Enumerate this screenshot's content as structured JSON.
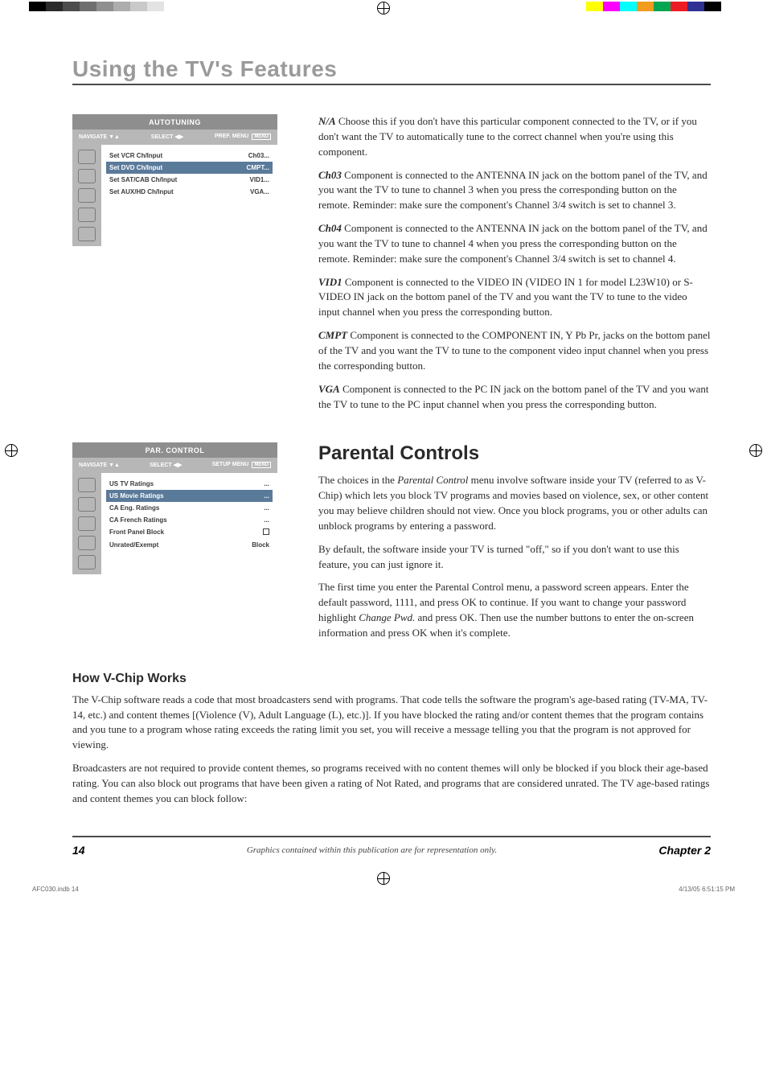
{
  "colorbars": {
    "left": [
      "#000000",
      "#2b2b2b",
      "#4d4d4d",
      "#6e6e6e",
      "#8f8f8f",
      "#adadad",
      "#c9c9c9",
      "#e3e3e3",
      "#ffffff"
    ],
    "right": [
      "#ffff00",
      "#ff00ff",
      "#00ffff",
      "#f29b1d",
      "#00a651",
      "#ed1c24",
      "#2e3192",
      "#000000",
      "#ffffff"
    ]
  },
  "page": {
    "title": "Using the TV's Features",
    "number": "14",
    "footer_note": "Graphics contained within this publication are for representation only.",
    "chapter": "Chapter 2"
  },
  "print": {
    "file": "AFC030.indb   14",
    "datetime": "4/13/05   6:51:15 PM"
  },
  "autotuning": {
    "title": "AUTOTUNING",
    "nav_left": "NAVIGATE",
    "nav_mid": "SELECT",
    "nav_right": "PREF. MENU",
    "nav_box": "MENU",
    "rows": [
      {
        "label": "Set VCR Ch/Input",
        "val": "Ch03..."
      },
      {
        "label": "Set DVD Ch/Input",
        "val": "CMPT...",
        "selected": true
      },
      {
        "label": "Set SAT/CAB Ch/Input",
        "val": "VID1..."
      },
      {
        "label": "Set AUX/HD Ch/Input",
        "val": "VGA..."
      }
    ]
  },
  "parcontrol": {
    "title": "PAR. CONTROL",
    "nav_left": "NAVIGATE",
    "nav_mid": "SELECT",
    "nav_right": "SETUP MENU",
    "nav_box": "MENU",
    "rows": [
      {
        "label": "US TV Ratings",
        "val": "..."
      },
      {
        "label": "US Movie Ratings",
        "val": "...",
        "selected": true
      },
      {
        "label": "CA Eng. Ratings",
        "val": "..."
      },
      {
        "label": "CA French Ratings",
        "val": "..."
      },
      {
        "label": "Front Panel Block",
        "val": "[checkbox]"
      },
      {
        "label": "Unrated/Exempt",
        "val": "Block"
      }
    ]
  },
  "defs": {
    "na": {
      "term": "N/A",
      "text": "  Choose this if you don't have this particular component connected to the TV, or if you don't want the TV to automatically tune to the correct channel when you're using this component."
    },
    "ch03": {
      "term": "Ch03",
      "text": "  Component is connected to the ANTENNA IN jack on the bottom panel of the TV, and you want the TV to tune to channel 3 when you press the corresponding button on the remote. Reminder: make sure the component's Channel 3/4 switch is set to channel 3."
    },
    "ch04": {
      "term": "Ch04",
      "text": "  Component is connected to the ANTENNA IN jack on the bottom panel of the TV, and you want the TV to tune to channel 4 when you press the corresponding button on the remote. Reminder: make sure the component's Channel 3/4 switch is set to channel 4."
    },
    "vid1": {
      "term": "VID1",
      "text": "   Component is connected to the VIDEO IN (VIDEO IN 1 for model L23W10) or S-VIDEO IN jack on the bottom panel of the TV and you want the TV to tune to the video input channel when you press the corresponding button."
    },
    "cmpt": {
      "term": "CMPT",
      "text": "   Component is connected to the COMPONENT IN, Y Pb Pr,  jacks on the bottom panel of the TV and you want the TV to tune to the component video input channel when you press the corresponding button."
    },
    "vga": {
      "term": "VGA",
      "text": "   Component is connected to the PC IN jack on the bottom panel of the TV and you want the TV to tune to the PC input channel when you press the corresponding button."
    }
  },
  "parental": {
    "heading": "Parental Controls",
    "p1a": "The choices in the ",
    "p1i": "Parental Control",
    "p1b": " menu involve software inside your TV (referred to as V-Chip) which lets you block TV programs and movies based on violence, sex, or other content you may believe children should not view. Once you block programs, you or other adults can unblock programs by entering a password.",
    "p2": "By default, the software inside your TV is turned \"off,\" so if you don't want to use this feature, you can just ignore it.",
    "p3a": "The first time you enter the Parental Control menu, a  password screen appears. Enter the default password, 1111, and press OK to continue. If you want to change your password highlight ",
    "p3i": "Change Pwd.",
    "p3b": " and press OK. Then use the number buttons to enter the on-screen information and press OK when it's complete."
  },
  "vchip": {
    "heading": "How V-Chip Works",
    "p1": "The V-Chip software reads a code that most broadcasters send with programs. That code tells the software the program's age-based rating (TV-MA, TV-14, etc.) and content themes [(Violence (V), Adult Language (L), etc.)]. If you have blocked the rating and/or content themes that the program contains and you tune to a program whose rating exceeds the rating limit you set, you will receive a message telling you that the program is not approved for viewing.",
    "p2": "Broadcasters are not required to provide content themes, so programs received with no content themes will only be blocked if you block their age-based rating. You can also block out programs that have been given a rating of Not Rated, and programs that are considered unrated. The TV age-based ratings and content themes you can block follow:"
  }
}
